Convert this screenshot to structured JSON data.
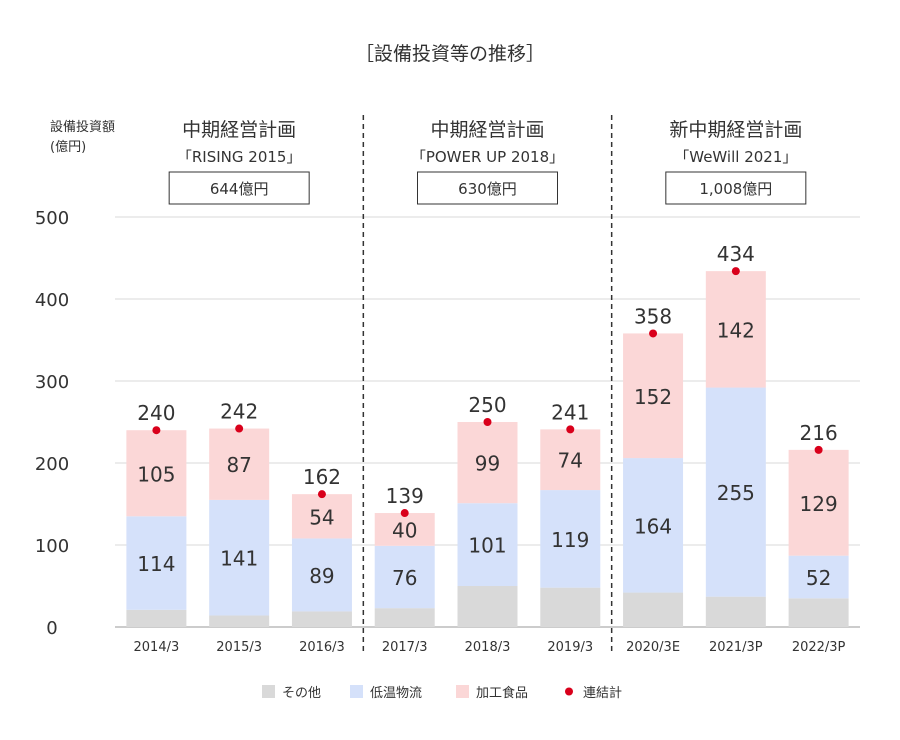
{
  "title": "［設備投資等の推移］",
  "unit_label": [
    "設備投資額",
    "(億円)"
  ],
  "plans": [
    {
      "name": "中期経営計画",
      "subtitle": "「RISING 2015」",
      "budget": "644億円",
      "start": 0,
      "end": 2
    },
    {
      "name": "中期経営計画",
      "subtitle": "「POWER UP 2018」",
      "budget": "630億円",
      "start": 3,
      "end": 5
    },
    {
      "name": "新中期経営計画",
      "subtitle": "「WeWill 2021」",
      "budget": "1,008億円",
      "start": 6,
      "end": 8
    }
  ],
  "colors": {
    "other": "#d9d9d9",
    "logistics": "#d5e1fa",
    "food": "#fbd7d7",
    "total_dot": "#d9001b",
    "grid": "#d9d9d9",
    "axis": "#999999",
    "divider": "#333333"
  },
  "legend": [
    "その他",
    "低温物流",
    "加工食品",
    "連結計"
  ],
  "chart_data": {
    "type": "bar",
    "stacked": true,
    "ylim": [
      0,
      500
    ],
    "yticks": [
      0,
      100,
      200,
      300,
      400,
      500
    ],
    "grid": true,
    "legend_position": "bottom",
    "categories": [
      "2014/3",
      "2015/3",
      "2016/3",
      "2017/3",
      "2018/3",
      "2019/3",
      "2020/3E",
      "2021/3P",
      "2022/3P"
    ],
    "series": [
      {
        "name": "その他",
        "key": "other",
        "values": [
          21,
          14,
          19,
          23,
          50,
          48,
          42,
          37,
          35
        ]
      },
      {
        "name": "低温物流",
        "key": "logistics",
        "values": [
          114,
          141,
          89,
          76,
          101,
          119,
          164,
          255,
          52
        ],
        "labels": [
          "114",
          "141",
          "89",
          "76",
          "101",
          "119",
          "164",
          "255",
          "52"
        ]
      },
      {
        "name": "加工食品",
        "key": "food",
        "values": [
          105,
          87,
          54,
          40,
          99,
          74,
          152,
          142,
          129
        ],
        "labels": [
          "105",
          "87",
          "54",
          "40",
          "99",
          "74",
          "152",
          "142",
          "129"
        ]
      }
    ],
    "totals": {
      "name": "連結計",
      "values": [
        240,
        242,
        162,
        139,
        250,
        241,
        358,
        434,
        216
      ],
      "labels": [
        "240",
        "242",
        "162",
        "139",
        "250",
        "241",
        "358",
        "434",
        "216"
      ]
    }
  }
}
